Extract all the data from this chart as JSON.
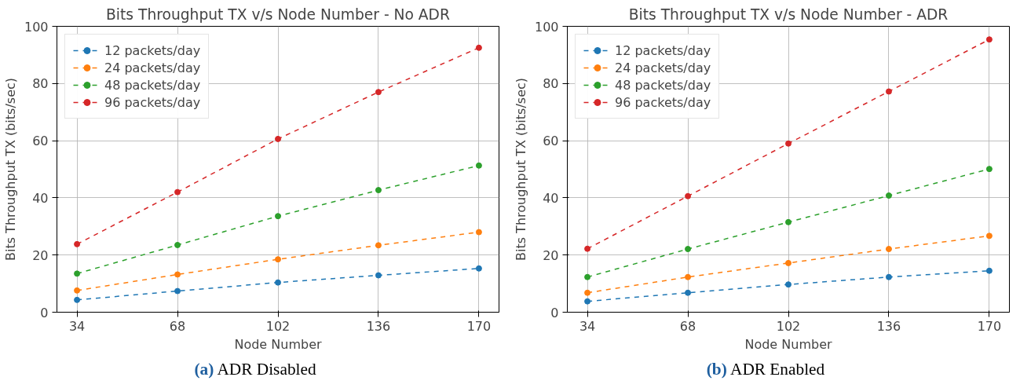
{
  "chart_data": [
    {
      "type": "line",
      "title": "Bits Throughput TX v/s Node Number - No ADR",
      "xlabel": "Node Number",
      "ylabel": "Bits Throughput TX (bits/sec)",
      "x": [
        34,
        68,
        102,
        136,
        170
      ],
      "xlim": [
        27.2,
        176.8
      ],
      "xticks": [
        34,
        68,
        102,
        136,
        170
      ],
      "ylim": [
        0,
        100
      ],
      "yticks": [
        0,
        20,
        40,
        60,
        80,
        100
      ],
      "grid": true,
      "legend": "top left",
      "marker": "circle",
      "line_style": "dashed",
      "annotations": [
        "(a) ADR Disabled"
      ],
      "series": [
        {
          "name": "12 packets/day",
          "color": "#1f77b4",
          "values": [
            4.3,
            7.4,
            10.4,
            12.9,
            15.3
          ]
        },
        {
          "name": "24 packets/day",
          "color": "#ff7f0e",
          "values": [
            7.6,
            13.2,
            18.5,
            23.4,
            28.0
          ]
        },
        {
          "name": "48 packets/day",
          "color": "#2ca02c",
          "values": [
            13.5,
            23.5,
            33.6,
            42.7,
            51.3
          ]
        },
        {
          "name": "96 packets/day",
          "color": "#d62728",
          "values": [
            23.8,
            42.0,
            60.6,
            77.0,
            92.5
          ]
        }
      ]
    },
    {
      "type": "line",
      "title": "Bits Throughput TX v/s Node Number - ADR",
      "xlabel": "Node Number",
      "ylabel": "Bits Throughput TX (bits/sec)",
      "x": [
        34,
        68,
        102,
        136,
        170
      ],
      "xlim": [
        27.2,
        176.8
      ],
      "xticks": [
        34,
        68,
        102,
        136,
        170
      ],
      "ylim": [
        0,
        100
      ],
      "yticks": [
        0,
        20,
        40,
        60,
        80,
        100
      ],
      "grid": true,
      "legend": "top left",
      "marker": "circle",
      "line_style": "dashed",
      "annotations": [
        "(b) ADR Enabled"
      ],
      "series": [
        {
          "name": "12 packets/day",
          "color": "#1f77b4",
          "values": [
            3.8,
            6.8,
            9.7,
            12.3,
            14.5
          ]
        },
        {
          "name": "24 packets/day",
          "color": "#ff7f0e",
          "values": [
            6.8,
            12.3,
            17.2,
            22.1,
            26.7
          ]
        },
        {
          "name": "48 packets/day",
          "color": "#2ca02c",
          "values": [
            12.3,
            22.1,
            31.5,
            40.8,
            50.1
          ]
        },
        {
          "name": "96 packets/day",
          "color": "#d62728",
          "values": [
            22.2,
            40.6,
            59.0,
            77.2,
            95.4
          ]
        }
      ]
    }
  ]
}
